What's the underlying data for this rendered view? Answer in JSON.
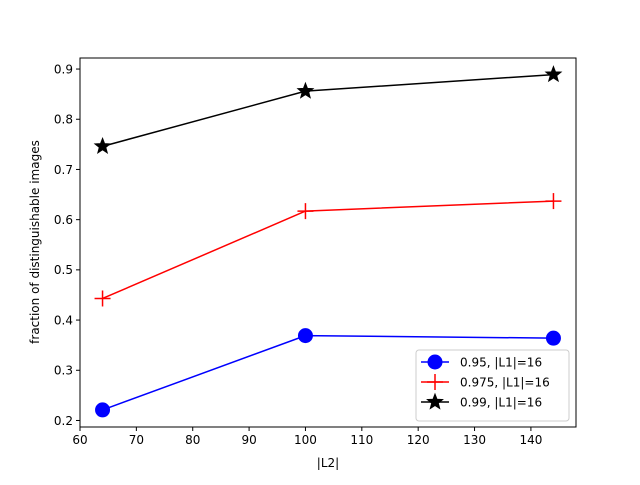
{
  "chart_data": {
    "type": "line",
    "title": "",
    "xlabel": "|L2|",
    "ylabel": "fraction of distinguishable images",
    "xlim": [
      60,
      148
    ],
    "ylim": [
      0.187,
      0.922
    ],
    "xticks": [
      60,
      70,
      80,
      90,
      100,
      110,
      120,
      130,
      140
    ],
    "yticks": [
      0.2,
      0.3,
      0.4,
      0.5,
      0.6,
      0.7,
      0.8,
      0.9
    ],
    "xtick_labels": [
      "60",
      "70",
      "80",
      "90",
      "100",
      "110",
      "120",
      "130",
      "140"
    ],
    "ytick_labels": [
      "0.2",
      "0.3",
      "0.4",
      "0.5",
      "0.6",
      "0.7",
      "0.8",
      "0.9"
    ],
    "grid": false,
    "legend_position": "lower-right",
    "series": [
      {
        "name": "0.95, |L1|=16",
        "color": "#0000ff",
        "marker": "circle",
        "x": [
          64,
          100,
          144
        ],
        "y": [
          0.221,
          0.369,
          0.364
        ]
      },
      {
        "name": "0.975, |L1|=16",
        "color": "#ff0000",
        "marker": "plus",
        "x": [
          64,
          100,
          144
        ],
        "y": [
          0.443,
          0.617,
          0.637
        ]
      },
      {
        "name": "0.99, |L1|=16",
        "color": "#000000",
        "marker": "star",
        "x": [
          64,
          100,
          144
        ],
        "y": [
          0.746,
          0.856,
          0.889
        ]
      }
    ]
  }
}
